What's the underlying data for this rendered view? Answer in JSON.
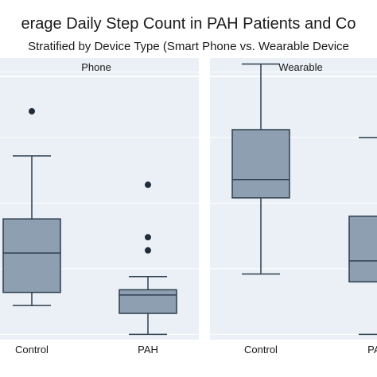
{
  "chart_data": {
    "type": "box",
    "title": "erage Daily Step Count in PAH Patients and Co",
    "subtitle": "Stratified by Device Type (Smart Phone vs. Wearable Device",
    "xlabel": "",
    "ylabel": "",
    "ylim": [
      0,
      10
    ],
    "grid": true,
    "colors": {
      "box_fill": "#8e9fb1",
      "box_stroke": "#2c3e50",
      "panel_bg": "#eaf0f5",
      "strip_bg": "#eaf0f5",
      "grid": "#ffffff"
    },
    "panels": [
      {
        "label": "Phone",
        "categories": [
          "Control",
          "PAH"
        ],
        "boxes": [
          {
            "category": "Control",
            "whisker_low": 1.3,
            "q1": 1.8,
            "median": 3.3,
            "q3": 4.6,
            "whisker_high": 7.0,
            "outliers": [
              8.7
            ]
          },
          {
            "category": "PAH",
            "whisker_low": 0.2,
            "q1": 1.0,
            "median": 1.7,
            "q3": 1.9,
            "whisker_high": 2.4,
            "outliers": [
              3.4,
              3.9,
              5.9
            ]
          }
        ]
      },
      {
        "label": "Wearable",
        "categories": [
          "Control",
          "PAH"
        ],
        "boxes": [
          {
            "category": "Control",
            "whisker_low": 2.5,
            "q1": 5.4,
            "median": 6.1,
            "q3": 8.0,
            "whisker_high": 10.5,
            "outliers": []
          },
          {
            "category": "PAH",
            "whisker_low": 0.2,
            "q1": 2.2,
            "median": 3.0,
            "q3": 4.7,
            "whisker_high": 7.7,
            "outliers": []
          }
        ]
      }
    ]
  }
}
